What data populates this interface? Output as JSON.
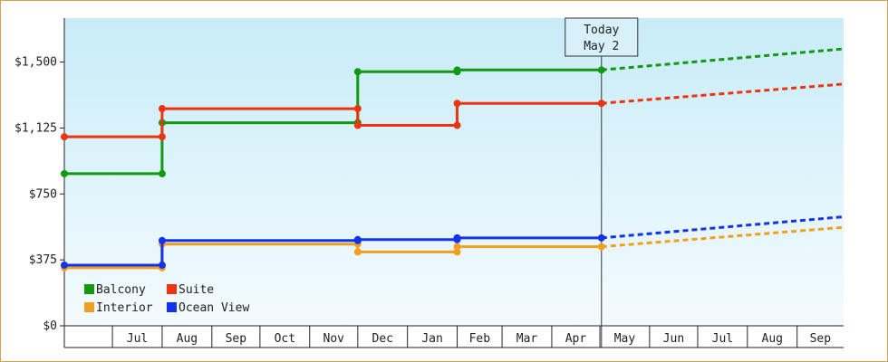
{
  "chart_data": {
    "type": "line",
    "step": true,
    "title": "",
    "xlabel": "",
    "ylabel": "",
    "y_ticks": [
      "$0",
      "$375",
      "$750",
      "$1,125",
      "$1,500"
    ],
    "y_tick_values": [
      0,
      375,
      750,
      1125,
      1500
    ],
    "ylim": [
      0,
      1750
    ],
    "x_range": [
      "2020-06-01",
      "2021-09-30"
    ],
    "month_labels": [
      {
        "label": "Jul",
        "start": "2020-07-01",
        "end": "2020-08-01"
      },
      {
        "label": "Aug",
        "start": "2020-08-01",
        "end": "2020-09-01"
      },
      {
        "label": "Sep",
        "start": "2020-09-01",
        "end": "2020-10-01"
      },
      {
        "label": "Oct",
        "start": "2020-10-01",
        "end": "2020-11-01"
      },
      {
        "label": "Nov",
        "start": "2020-11-01",
        "end": "2020-12-01"
      },
      {
        "label": "Dec",
        "start": "2020-12-01",
        "end": "2021-01-01"
      },
      {
        "label": "Jan",
        "start": "2021-01-01",
        "end": "2021-02-01"
      },
      {
        "label": "Feb",
        "start": "2021-02-01",
        "end": "2021-03-01"
      },
      {
        "label": "Mar",
        "start": "2021-03-01",
        "end": "2021-04-01"
      },
      {
        "label": "Apr",
        "start": "2021-04-01",
        "end": "2021-05-01"
      },
      {
        "label": "May",
        "start": "2021-05-01",
        "end": "2021-06-01"
      },
      {
        "label": "Jun",
        "start": "2021-06-01",
        "end": "2021-07-01"
      },
      {
        "label": "Jul",
        "start": "2021-07-01",
        "end": "2021-08-01"
      },
      {
        "label": "Aug",
        "start": "2021-08-01",
        "end": "2021-09-01"
      },
      {
        "label": "Sep",
        "start": "2021-09-01",
        "end": "2021-09-30"
      }
    ],
    "today": {
      "date": "2021-05-02",
      "label_line1": "Today",
      "label_line2": "May 2"
    },
    "legend": {
      "placement": "bottom-left",
      "entries": [
        "Balcony",
        "Suite",
        "Interior",
        "Ocean View"
      ]
    },
    "series": [
      {
        "name": "Balcony",
        "color": "#119911",
        "points": [
          {
            "x": "2020-06-01",
            "y": 865
          },
          {
            "x": "2020-08-01",
            "y": 865
          },
          {
            "x": "2020-08-01",
            "y": 1155
          },
          {
            "x": "2020-12-01",
            "y": 1155
          },
          {
            "x": "2020-12-01",
            "y": 1445
          },
          {
            "x": "2021-02-01",
            "y": 1445
          },
          {
            "x": "2021-02-01",
            "y": 1455
          },
          {
            "x": "2021-05-02",
            "y": 1455
          }
        ],
        "forecast": [
          {
            "x": "2021-05-02",
            "y": 1455
          },
          {
            "x": "2021-09-30",
            "y": 1575
          }
        ]
      },
      {
        "name": "Suite",
        "color": "#ee3311",
        "points": [
          {
            "x": "2020-06-01",
            "y": 1075
          },
          {
            "x": "2020-08-01",
            "y": 1075
          },
          {
            "x": "2020-08-01",
            "y": 1235
          },
          {
            "x": "2020-12-01",
            "y": 1235
          },
          {
            "x": "2020-12-01",
            "y": 1140
          },
          {
            "x": "2021-02-01",
            "y": 1140
          },
          {
            "x": "2021-02-01",
            "y": 1265
          },
          {
            "x": "2021-05-02",
            "y": 1265
          }
        ],
        "forecast": [
          {
            "x": "2021-05-02",
            "y": 1265
          },
          {
            "x": "2021-09-30",
            "y": 1375
          }
        ]
      },
      {
        "name": "Interior",
        "color": "#f0a020",
        "points": [
          {
            "x": "2020-06-01",
            "y": 330
          },
          {
            "x": "2020-08-01",
            "y": 330
          },
          {
            "x": "2020-08-01",
            "y": 465
          },
          {
            "x": "2020-12-01",
            "y": 465
          },
          {
            "x": "2020-12-01",
            "y": 420
          },
          {
            "x": "2021-02-01",
            "y": 420
          },
          {
            "x": "2021-02-01",
            "y": 450
          },
          {
            "x": "2021-05-02",
            "y": 450
          }
        ],
        "forecast": [
          {
            "x": "2021-05-02",
            "y": 450
          },
          {
            "x": "2021-09-30",
            "y": 560
          }
        ]
      },
      {
        "name": "Ocean View",
        "color": "#1133ee",
        "points": [
          {
            "x": "2020-06-01",
            "y": 345
          },
          {
            "x": "2020-08-01",
            "y": 345
          },
          {
            "x": "2020-08-01",
            "y": 485
          },
          {
            "x": "2020-12-01",
            "y": 485
          },
          {
            "x": "2020-12-01",
            "y": 490
          },
          {
            "x": "2021-02-01",
            "y": 490
          },
          {
            "x": "2021-02-01",
            "y": 500
          },
          {
            "x": "2021-05-02",
            "y": 500
          }
        ],
        "forecast": [
          {
            "x": "2021-05-02",
            "y": 500
          },
          {
            "x": "2021-09-30",
            "y": 620
          }
        ]
      }
    ],
    "grid": false,
    "background_gradient": [
      "#c8ecf8",
      "#f4fbfe"
    ]
  }
}
